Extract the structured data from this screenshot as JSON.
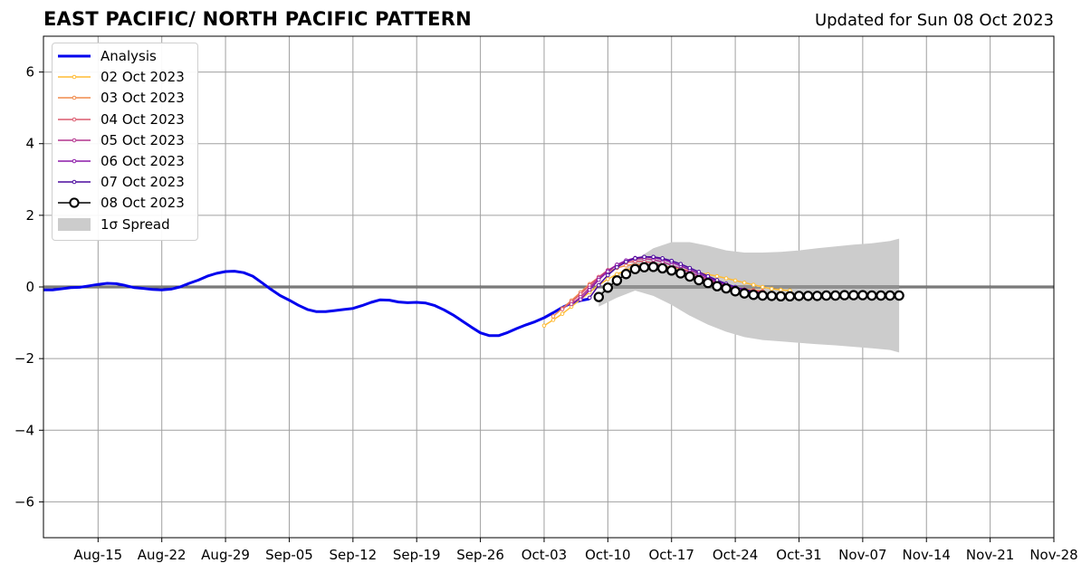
{
  "header": {
    "title": "EAST PACIFIC/ NORTH PACIFIC PATTERN",
    "updated": "Updated for Sun 08 Oct 2023"
  },
  "chart_data": {
    "type": "line",
    "title": "EAST PACIFIC/ NORTH PACIFIC PATTERN",
    "subtitle": "Updated for Sun 08 Oct 2023",
    "xlabel": "",
    "ylabel": "",
    "xlim": [
      "2023-08-09",
      "2023-11-28"
    ],
    "ylim": [
      -7,
      7
    ],
    "grid": true,
    "legend_position": "top-left",
    "x_ticks": [
      "Aug-15",
      "Aug-22",
      "Aug-29",
      "Sep-05",
      "Sep-12",
      "Sep-19",
      "Sep-26",
      "Oct-03",
      "Oct-10",
      "Oct-17",
      "Oct-24",
      "Oct-31",
      "Nov-07",
      "Nov-14",
      "Nov-21",
      "Nov-28"
    ],
    "x_tick_dates": [
      "2023-08-15",
      "2023-08-22",
      "2023-08-29",
      "2023-09-05",
      "2023-09-12",
      "2023-09-19",
      "2023-09-26",
      "2023-10-03",
      "2023-10-10",
      "2023-10-17",
      "2023-10-24",
      "2023-10-31",
      "2023-11-07",
      "2023-11-14",
      "2023-11-21",
      "2023-11-28"
    ],
    "y_ticks": [
      6,
      4,
      2,
      0,
      -2,
      -4,
      -6
    ],
    "y_tick_labels": [
      "6",
      "4",
      "2",
      "0",
      "−2",
      "−4",
      "−6"
    ],
    "analysis": {
      "name": "Analysis",
      "color": "#0000ee",
      "points": [
        [
          "2023-08-09",
          -0.08
        ],
        [
          "2023-08-10",
          -0.08
        ],
        [
          "2023-08-11",
          -0.05
        ],
        [
          "2023-08-12",
          -0.02
        ],
        [
          "2023-08-13",
          -0.01
        ],
        [
          "2023-08-14",
          0.03
        ],
        [
          "2023-08-15",
          0.07
        ],
        [
          "2023-08-16",
          0.1
        ],
        [
          "2023-08-17",
          0.09
        ],
        [
          "2023-08-18",
          0.04
        ],
        [
          "2023-08-19",
          -0.02
        ],
        [
          "2023-08-20",
          -0.04
        ],
        [
          "2023-08-21",
          -0.07
        ],
        [
          "2023-08-22",
          -0.08
        ],
        [
          "2023-08-23",
          -0.06
        ],
        [
          "2023-08-24",
          0.0
        ],
        [
          "2023-08-25",
          0.1
        ],
        [
          "2023-08-26",
          0.19
        ],
        [
          "2023-08-27",
          0.3
        ],
        [
          "2023-08-28",
          0.38
        ],
        [
          "2023-08-29",
          0.43
        ],
        [
          "2023-08-30",
          0.44
        ],
        [
          "2023-08-31",
          0.4
        ],
        [
          "2023-09-01",
          0.3
        ],
        [
          "2023-09-02",
          0.12
        ],
        [
          "2023-09-03",
          -0.07
        ],
        [
          "2023-09-04",
          -0.24
        ],
        [
          "2023-09-05",
          -0.37
        ],
        [
          "2023-09-06",
          -0.51
        ],
        [
          "2023-09-07",
          -0.63
        ],
        [
          "2023-09-08",
          -0.69
        ],
        [
          "2023-09-09",
          -0.69
        ],
        [
          "2023-09-10",
          -0.66
        ],
        [
          "2023-09-11",
          -0.63
        ],
        [
          "2023-09-12",
          -0.6
        ],
        [
          "2023-09-13",
          -0.52
        ],
        [
          "2023-09-14",
          -0.43
        ],
        [
          "2023-09-15",
          -0.36
        ],
        [
          "2023-09-16",
          -0.37
        ],
        [
          "2023-09-17",
          -0.42
        ],
        [
          "2023-09-18",
          -0.44
        ],
        [
          "2023-09-19",
          -0.43
        ],
        [
          "2023-09-20",
          -0.45
        ],
        [
          "2023-09-21",
          -0.52
        ],
        [
          "2023-09-22",
          -0.64
        ],
        [
          "2023-09-23",
          -0.78
        ],
        [
          "2023-09-24",
          -0.95
        ],
        [
          "2023-09-25",
          -1.12
        ],
        [
          "2023-09-26",
          -1.28
        ],
        [
          "2023-09-27",
          -1.36
        ],
        [
          "2023-09-28",
          -1.36
        ],
        [
          "2023-09-29",
          -1.27
        ],
        [
          "2023-09-30",
          -1.16
        ],
        [
          "2023-10-01",
          -1.06
        ],
        [
          "2023-10-02",
          -0.97
        ],
        [
          "2023-10-03",
          -0.86
        ],
        [
          "2023-10-04",
          -0.72
        ],
        [
          "2023-10-05",
          -0.57
        ],
        [
          "2023-10-06",
          -0.45
        ],
        [
          "2023-10-07",
          -0.38
        ],
        [
          "2023-10-08",
          -0.33
        ]
      ]
    },
    "forecasts": [
      {
        "name": "02 Oct 2023",
        "color": "#ffbb33",
        "start": "2023-10-03",
        "values": [
          -1.08,
          -0.92,
          -0.75,
          -0.55,
          -0.35,
          -0.15,
          0.05,
          0.22,
          0.36,
          0.47,
          0.54,
          0.58,
          0.59,
          0.58,
          0.55,
          0.5,
          0.45,
          0.4,
          0.35,
          0.3,
          0.24,
          0.18,
          0.12,
          0.06,
          0.0,
          -0.05,
          -0.08,
          -0.1
        ]
      },
      {
        "name": "03 Oct 2023",
        "color": "#f08a4b",
        "start": "2023-10-04",
        "values": [
          -0.82,
          -0.6,
          -0.38,
          -0.15,
          0.08,
          0.27,
          0.42,
          0.53,
          0.6,
          0.63,
          0.62,
          0.58,
          0.52,
          0.46,
          0.39,
          0.32,
          0.25,
          0.18,
          0.11,
          0.05,
          -0.01,
          -0.06,
          -0.09,
          -0.11
        ]
      },
      {
        "name": "04 Oct 2023",
        "color": "#dc5a6e",
        "start": "2023-10-05",
        "values": [
          -0.62,
          -0.42,
          -0.2,
          0.05,
          0.28,
          0.47,
          0.6,
          0.68,
          0.72,
          0.71,
          0.67,
          0.6,
          0.52,
          0.43,
          0.34,
          0.26,
          0.18,
          0.1,
          0.03,
          -0.03,
          -0.08,
          -0.11,
          -0.13
        ]
      },
      {
        "name": "05 Oct 2023",
        "color": "#b4358e",
        "start": "2023-10-06",
        "values": [
          -0.48,
          -0.28,
          -0.02,
          0.25,
          0.46,
          0.62,
          0.72,
          0.78,
          0.79,
          0.76,
          0.7,
          0.61,
          0.51,
          0.41,
          0.31,
          0.22,
          0.13,
          0.05,
          -0.02,
          -0.08,
          -0.13,
          -0.17
        ]
      },
      {
        "name": "06 Oct 2023",
        "color": "#8b1aa8",
        "start": "2023-10-07",
        "values": [
          -0.35,
          -0.08,
          0.2,
          0.43,
          0.62,
          0.74,
          0.81,
          0.84,
          0.82,
          0.77,
          0.69,
          0.59,
          0.48,
          0.37,
          0.26,
          0.16,
          0.07,
          -0.01,
          -0.08,
          -0.14,
          -0.19,
          -0.23
        ]
      },
      {
        "name": "07 Oct 2023",
        "color": "#4b0a9e",
        "start": "2023-10-08",
        "values": [
          -0.3,
          0.05,
          0.33,
          0.55,
          0.7,
          0.8,
          0.84,
          0.84,
          0.8,
          0.73,
          0.64,
          0.53,
          0.42,
          0.3,
          0.19,
          0.09,
          0.0,
          -0.07,
          -0.13,
          -0.18,
          -0.21
        ]
      },
      {
        "name": "08 Oct 2023",
        "color": "#000000",
        "marker": "open-circle",
        "start": "2023-10-09",
        "values": [
          -0.28,
          -0.02,
          0.18,
          0.36,
          0.5,
          0.55,
          0.56,
          0.52,
          0.46,
          0.38,
          0.29,
          0.19,
          0.11,
          0.02,
          -0.04,
          -0.12,
          -0.18,
          -0.22,
          -0.24,
          -0.25,
          -0.26,
          -0.26,
          -0.25,
          -0.25,
          -0.25,
          -0.24,
          -0.24,
          -0.23,
          -0.23,
          -0.23,
          -0.24,
          -0.24,
          -0.24,
          -0.24
        ]
      }
    ],
    "spread": {
      "name": "1σ Spread",
      "color": "#cccccc",
      "points": [
        [
          "2023-10-09",
          -0.2,
          -0.55
        ],
        [
          "2023-10-11",
          0.3,
          -0.3
        ],
        [
          "2023-10-13",
          0.75,
          -0.1
        ],
        [
          "2023-10-15",
          1.08,
          -0.25
        ],
        [
          "2023-10-17",
          1.25,
          -0.5
        ],
        [
          "2023-10-19",
          1.25,
          -0.8
        ],
        [
          "2023-10-21",
          1.15,
          -1.05
        ],
        [
          "2023-10-23",
          1.02,
          -1.25
        ],
        [
          "2023-10-25",
          0.96,
          -1.4
        ],
        [
          "2023-10-27",
          0.96,
          -1.48
        ],
        [
          "2023-10-29",
          0.98,
          -1.52
        ],
        [
          "2023-10-31",
          1.02,
          -1.56
        ],
        [
          "2023-11-02",
          1.08,
          -1.6
        ],
        [
          "2023-11-04",
          1.13,
          -1.63
        ],
        [
          "2023-11-06",
          1.18,
          -1.67
        ],
        [
          "2023-11-08",
          1.22,
          -1.71
        ],
        [
          "2023-11-10",
          1.28,
          -1.76
        ],
        [
          "2023-11-11",
          1.35,
          -1.83
        ]
      ]
    }
  },
  "legend": {
    "items": [
      {
        "label": "Analysis",
        "kind": "line-thick",
        "color": "#0000ee"
      },
      {
        "label": "02 Oct 2023",
        "kind": "line-dot",
        "color": "#ffbb33"
      },
      {
        "label": "03 Oct 2023",
        "kind": "line-dot",
        "color": "#f08a4b"
      },
      {
        "label": "04 Oct 2023",
        "kind": "line-dot",
        "color": "#dc5a6e"
      },
      {
        "label": "05 Oct 2023",
        "kind": "line-dot",
        "color": "#b4358e"
      },
      {
        "label": "06 Oct 2023",
        "kind": "line-dot",
        "color": "#8b1aa8"
      },
      {
        "label": "07 Oct 2023",
        "kind": "line-dot",
        "color": "#4b0a9e"
      },
      {
        "label": "08 Oct 2023",
        "kind": "line-circle",
        "color": "#000000"
      },
      {
        "label": "1σ Spread",
        "kind": "patch",
        "color": "#cccccc"
      }
    ]
  }
}
